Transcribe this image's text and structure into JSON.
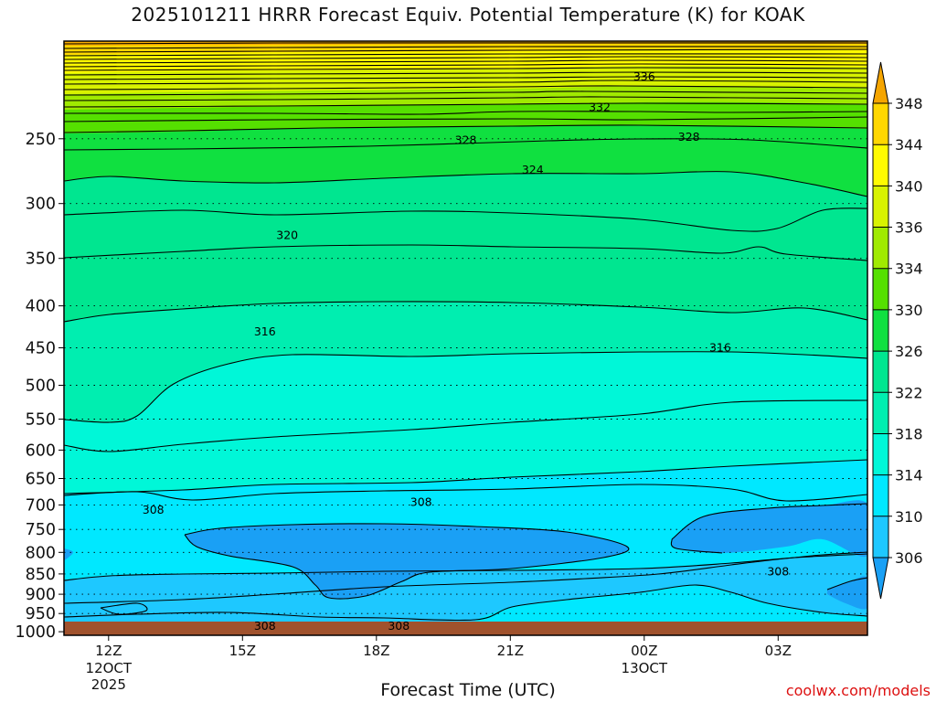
{
  "chart_data": {
    "type": "heatmap",
    "title": "2025101211 HRRR Forecast Equiv. Potential Temperature (K) for KOAK",
    "xlabel": "Forecast Time (UTC)",
    "ylabel": "",
    "credit": "coolwx.com/models",
    "x_ticks": [
      {
        "hour": 12,
        "label": "12Z",
        "date_lines": [
          "12OCT",
          "2025"
        ]
      },
      {
        "hour": 15,
        "label": "15Z",
        "date_lines": []
      },
      {
        "hour": 18,
        "label": "18Z",
        "date_lines": []
      },
      {
        "hour": 21,
        "label": "21Z",
        "date_lines": []
      },
      {
        "hour": 24,
        "label": "00Z",
        "date_lines": [
          "13OCT"
        ]
      },
      {
        "hour": 27,
        "label": "03Z",
        "date_lines": []
      }
    ],
    "xlim_hours": [
      11,
      29
    ],
    "y_scale": "log",
    "y_ticks": [
      250,
      300,
      350,
      400,
      450,
      500,
      550,
      600,
      650,
      700,
      750,
      800,
      850,
      900,
      950,
      1000
    ],
    "ylim_hpa": [
      1010,
      190
    ],
    "grid": "dotted horizontal at pressure levels",
    "colorbar": {
      "labels": [
        306,
        310,
        314,
        318,
        322,
        326,
        330,
        334,
        336,
        340,
        344,
        348
      ],
      "colors": [
        "#1ec8ff",
        "#00e8ff",
        "#00f7d8",
        "#00eeb0",
        "#00e690",
        "#10e040",
        "#55e000",
        "#a0ea00",
        "#d8f200",
        "#fffa00",
        "#ffd700",
        "#ffb000"
      ],
      "over_color": "#f5a500",
      "under_color": "#1aa0f5",
      "extend": "both"
    },
    "ground_color": "#a0522d",
    "levels": [
      {
        "value": 306,
        "color": "#1ec8ff"
      },
      {
        "value": 310,
        "color": "#00e8ff"
      },
      {
        "value": 314,
        "color": "#00f7d8"
      },
      {
        "value": 318,
        "color": "#00eeb0"
      },
      {
        "value": 322,
        "color": "#00e690"
      },
      {
        "value": 326,
        "color": "#10e040"
      },
      {
        "value": 330,
        "color": "#55e000"
      },
      {
        "value": 334,
        "color": "#a0ea00"
      },
      {
        "value": 336,
        "color": "#d8f200"
      },
      {
        "value": 340,
        "color": "#fffa00"
      },
      {
        "value": 344,
        "color": "#ffd700"
      },
      {
        "value": 348,
        "color": "#ffb000"
      }
    ],
    "contour_labels": [
      {
        "text": "336",
        "hour": 24.0,
        "hpa": 210
      },
      {
        "text": "332",
        "hour": 23.0,
        "hpa": 229
      },
      {
        "text": "328",
        "hour": 20.0,
        "hpa": 251
      },
      {
        "text": "328",
        "hour": 25.0,
        "hpa": 249
      },
      {
        "text": "324",
        "hour": 21.5,
        "hpa": 273
      },
      {
        "text": "320",
        "hour": 16.0,
        "hpa": 328
      },
      {
        "text": "316",
        "hour": 15.5,
        "hpa": 430
      },
      {
        "text": "316",
        "hour": 25.7,
        "hpa": 450
      },
      {
        "text": "308",
        "hour": 13.0,
        "hpa": 710
      },
      {
        "text": "308",
        "hour": 19.0,
        "hpa": 695
      },
      {
        "text": "308",
        "hour": 27.0,
        "hpa": 845
      },
      {
        "text": "308",
        "hour": 15.5,
        "hpa": 985
      },
      {
        "text": "308",
        "hour": 18.5,
        "hpa": 985
      }
    ]
  }
}
